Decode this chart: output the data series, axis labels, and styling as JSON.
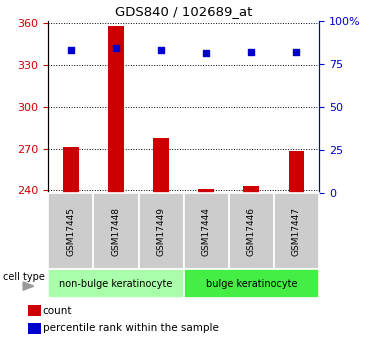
{
  "title": "GDS840 / 102689_at",
  "samples": [
    "GSM17445",
    "GSM17448",
    "GSM17449",
    "GSM17444",
    "GSM17446",
    "GSM17447"
  ],
  "counts": [
    271,
    358,
    278,
    241,
    243,
    268
  ],
  "percentile_ranks": [
    83,
    84,
    83,
    81,
    82,
    82
  ],
  "ylim_left": [
    238,
    362
  ],
  "ylim_right": [
    0,
    100
  ],
  "yticks_left": [
    240,
    270,
    300,
    330,
    360
  ],
  "yticks_right": [
    0,
    25,
    50,
    75,
    100
  ],
  "ytick_labels_right": [
    "0",
    "25",
    "50",
    "75",
    "100%"
  ],
  "bar_color": "#cc0000",
  "dot_color": "#0000cc",
  "group1_label": "non-bulge keratinocyte",
  "group2_label": "bulge keratinocyte",
  "group1_color": "#aaffaa",
  "group2_color": "#44ee44",
  "cell_type_label": "cell type",
  "legend_count": "count",
  "legend_percentile": "percentile rank within the sample",
  "bar_bottom": 238,
  "group1_indices": [
    0,
    1,
    2
  ],
  "group2_indices": [
    3,
    4,
    5
  ],
  "tick_color_left": "#cc0000",
  "tick_color_right": "#0000cc",
  "sample_box_color": "#cccccc",
  "bar_width": 0.35
}
